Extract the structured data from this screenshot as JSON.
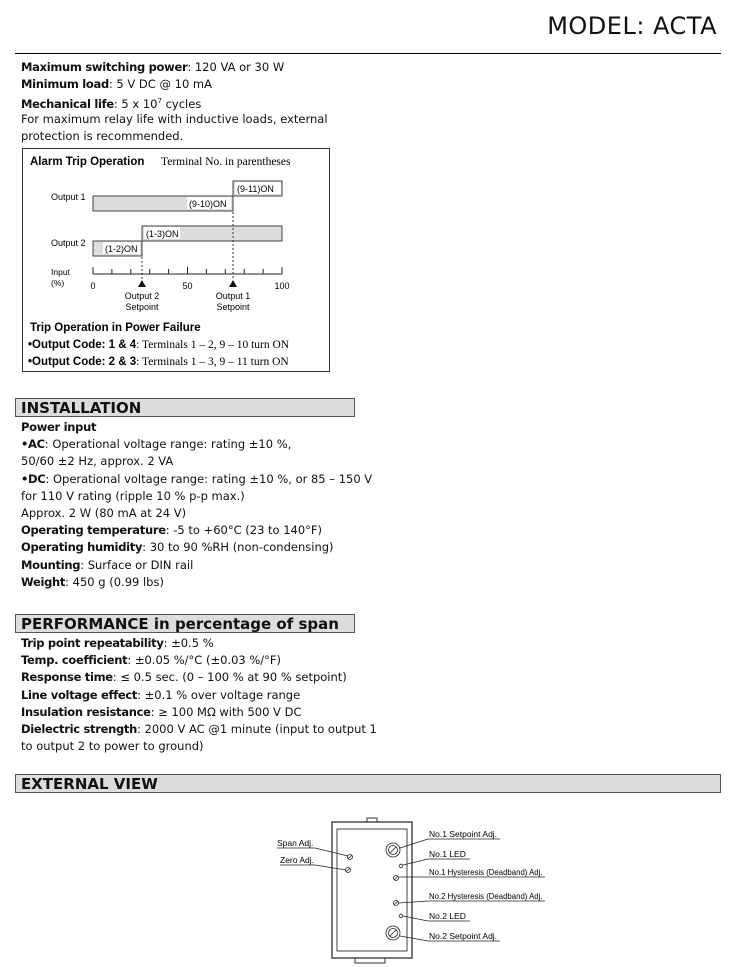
{
  "header": {
    "model": "MODEL: ACTA"
  },
  "relay": [
    {
      "label": "Maximum switching power",
      "value": ": 120 VA or 30 W"
    },
    {
      "label": "Minimum load",
      "value": ": 5 V DC @ 10 mA"
    },
    {
      "label": "Mechanical life",
      "value": ": 5 x 10",
      "sup": "7",
      "tail": " cycles"
    },
    {
      "label": "",
      "value": "For maximum relay life with inductive loads, external"
    },
    {
      "label": "",
      "value": "protection is recommended."
    }
  ],
  "alarm_box": {
    "title": "Alarm Trip Operation",
    "subtitle": "Terminal No. in parentheses",
    "output1": "Output 1",
    "output2": "Output 2",
    "o1_high": "(9-11)ON",
    "o1_low": "(9-10)ON",
    "o2_high": "(1-3)ON",
    "o2_low": "(1-2)ON",
    "input_label": "Input",
    "input_unit": "(%)",
    "ticks": [
      "0",
      "50",
      "100"
    ],
    "sp2_line1": "Output 2",
    "sp2_line2": "Setpoint",
    "sp1_line1": "Output 1",
    "sp1_line2": "Setpoint",
    "power_fail_title": "Trip Operation in Power Failure",
    "pf1_label": "•Output Code: 1 & 4",
    "pf1_value": ": Terminals 1 – 2, 9 – 10 turn ON",
    "pf2_label": "•Output Code: 2 & 3",
    "pf2_value": ": Terminals 1 – 3, 9 – 11 turn ON"
  },
  "installation": {
    "title": "INSTALLATION",
    "lines": [
      {
        "label": "Power input",
        "value": ""
      },
      {
        "label": "•AC",
        "value": ": Operational voltage range: rating ±10 %,"
      },
      {
        "label": "",
        "value": "50/60 ±2 Hz, approx. 2 VA"
      },
      {
        "label": "•DC",
        "value": ": Operational voltage range: rating ±10 %, or 85 – 150 V"
      },
      {
        "label": "",
        "value": "for 110 V rating (ripple 10 % p-p max.)"
      },
      {
        "label": "",
        "value": "Approx. 2 W (80 mA at 24 V)"
      },
      {
        "label": "Operating temperature",
        "value": ": -5 to +60°C (23 to 140°F)"
      },
      {
        "label": "Operating humidity",
        "value": ": 30 to 90 %RH (non-condensing)"
      },
      {
        "label": "Mounting",
        "value": ": Surface or DIN rail"
      },
      {
        "label": "Weight",
        "value": ": 450 g (0.99 lbs)"
      }
    ]
  },
  "performance": {
    "title": "PERFORMANCE in percentage of span",
    "lines": [
      {
        "label": "Trip point repeatability",
        "value": ": ±0.5 %"
      },
      {
        "label": "Temp. coefficient",
        "value": ": ±0.05 %/°C (±0.03 %/°F)"
      },
      {
        "label": "Response time",
        "value": ": ≤ 0.5 sec. (0 – 100 % at 90 % setpoint)"
      },
      {
        "label": "Line voltage effect",
        "value": ": ±0.1 % over voltage range"
      },
      {
        "label": "Insulation resistance",
        "value": ": ≥ 100 MΩ with 500 V DC"
      },
      {
        "label": "Dielectric strength",
        "value": ": 2000 V AC @1 minute (input to output 1"
      },
      {
        "label": "",
        "value": "to output 2 to power to ground)"
      }
    ]
  },
  "external_view": {
    "title": "EXTERNAL VIEW",
    "span": "Span Adj.",
    "zero": "Zero Adj.",
    "sp1": "No.1 Setpoint Adj.",
    "led1": "No.1 LED",
    "hys1": "No.1 Hysteresis (Deadband) Adj.",
    "hys2": "No.2 Hysteresis (Deadband) Adj.",
    "led2": "No.2 LED",
    "sp2": "No.2 Setpoint Adj."
  }
}
